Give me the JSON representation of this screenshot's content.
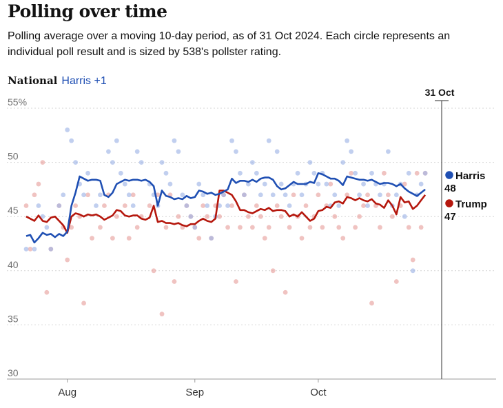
{
  "header": {
    "title": "Polling over time",
    "subtitle": "Polling average over a moving 10-day period, as of 31 Oct 2024. Each circle represents an individual poll result and is sized by 538's pollster rating."
  },
  "panel": {
    "name": "National",
    "lead": "Harris +1"
  },
  "colors": {
    "harris": "#1f4fb3",
    "trump": "#b5170d",
    "harris_dot": "#9fb5e6",
    "trump_dot": "#e8a3a0",
    "grid": "#d6d6d6",
    "axis": "#555555"
  },
  "chart_data": {
    "type": "line",
    "title": "Polling over time",
    "xlabel": "",
    "ylabel": "",
    "ylim": [
      30,
      55
    ],
    "xlim": [
      0,
      97
    ],
    "x_unit": "days since 22 Jul 2024",
    "yticks": [
      {
        "value": 55,
        "label": "55%"
      },
      {
        "value": 50,
        "label": "50"
      },
      {
        "value": 45,
        "label": "45"
      },
      {
        "value": 40,
        "label": "40"
      },
      {
        "value": 35,
        "label": "35"
      },
      {
        "value": 30,
        "label": "30"
      }
    ],
    "xticks": [
      {
        "x": 10,
        "label": "Aug"
      },
      {
        "x": 41,
        "label": "Sep"
      },
      {
        "x": 71,
        "label": "Oct"
      }
    ],
    "marker": {
      "x": 101,
      "label": "31 Oct"
    },
    "series": [
      {
        "name": "Harris",
        "final_value": "48",
        "x": [
          0,
          1,
          2,
          3,
          4,
          5,
          6,
          7,
          8,
          9,
          10,
          11,
          12,
          13,
          14,
          15,
          16,
          17,
          18,
          19,
          20,
          21,
          22,
          23,
          24,
          25,
          26,
          27,
          28,
          29,
          30,
          31,
          32,
          33,
          34,
          35,
          36,
          37,
          38,
          39,
          40,
          41,
          42,
          43,
          44,
          45,
          46,
          47,
          48,
          49,
          50,
          51,
          52,
          53,
          54,
          55,
          56,
          57,
          58,
          59,
          60,
          61,
          62,
          63,
          64,
          65,
          66,
          67,
          68,
          69,
          70,
          71,
          72,
          73,
          74,
          75,
          76,
          77,
          78,
          79,
          80,
          81,
          82,
          83,
          84,
          85,
          86,
          87,
          88,
          89,
          90,
          91,
          92,
          93,
          94,
          95,
          96,
          97
        ],
        "values": [
          43.2,
          43.3,
          42.6,
          43.0,
          43.5,
          43.3,
          43.4,
          43.1,
          43.4,
          43.2,
          43.6,
          46.0,
          47.2,
          48.7,
          48.5,
          48.3,
          48.4,
          48.4,
          48.3,
          47.0,
          46.8,
          47.2,
          48.0,
          48.2,
          48.4,
          48.3,
          48.4,
          48.4,
          48.3,
          48.4,
          48.2,
          47.8,
          46.0,
          47.4,
          46.9,
          46.8,
          46.6,
          46.7,
          46.6,
          46.9,
          46.7,
          46.8,
          47.4,
          47.3,
          47.1,
          47.2,
          47.0,
          47.1,
          47.3,
          47.5,
          48.5,
          48.1,
          48.3,
          48.3,
          48.2,
          48.4,
          48.2,
          48.5,
          48.6,
          48.6,
          48.4,
          47.8,
          47.5,
          47.6,
          47.9,
          48.2,
          48.0,
          48.0,
          48.0,
          48.2,
          48.1,
          49.0,
          48.9,
          48.7,
          48.5,
          48.5,
          48.3,
          47.9,
          48.7,
          48.6,
          48.5,
          48.4,
          48.4,
          48.3,
          48.4,
          48.2,
          48.0,
          48.1,
          48.1,
          48.0,
          47.8,
          48.0,
          47.6,
          47.3,
          47.1,
          46.9,
          47.2,
          47.5
        ]
      },
      {
        "name": "Trump",
        "final_value": "47",
        "x": [
          0,
          1,
          2,
          3,
          4,
          5,
          6,
          7,
          8,
          9,
          10,
          11,
          12,
          13,
          14,
          15,
          16,
          17,
          18,
          19,
          20,
          21,
          22,
          23,
          24,
          25,
          26,
          27,
          28,
          29,
          30,
          31,
          32,
          33,
          34,
          35,
          36,
          37,
          38,
          39,
          40,
          41,
          42,
          43,
          44,
          45,
          46,
          47,
          48,
          49,
          50,
          51,
          52,
          53,
          54,
          55,
          56,
          57,
          58,
          59,
          60,
          61,
          62,
          63,
          64,
          65,
          66,
          67,
          68,
          69,
          70,
          71,
          72,
          73,
          74,
          75,
          76,
          77,
          78,
          79,
          80,
          81,
          82,
          83,
          84,
          85,
          86,
          87,
          88,
          89,
          90,
          91,
          92,
          93,
          94,
          95,
          96,
          97
        ],
        "values": [
          45.0,
          44.8,
          44.6,
          45.1,
          44.6,
          44.5,
          44.9,
          45.0,
          44.6,
          44.2,
          43.5,
          45.0,
          45.3,
          45.2,
          45.0,
          45.2,
          45.1,
          45.2,
          45.0,
          44.7,
          44.9,
          45.1,
          45.6,
          45.5,
          45.1,
          45.0,
          45.1,
          45.1,
          44.8,
          44.7,
          44.9,
          46.0,
          44.5,
          44.6,
          44.4,
          44.4,
          44.3,
          44.4,
          44.2,
          44.1,
          44.3,
          44.3,
          44.6,
          44.8,
          44.6,
          44.5,
          44.8,
          47.4,
          47.4,
          47.2,
          47.0,
          46.4,
          45.6,
          45.6,
          45.4,
          45.3,
          45.5,
          45.7,
          45.6,
          45.8,
          45.5,
          45.6,
          45.6,
          45.5,
          45.0,
          45.2,
          45.0,
          45.4,
          45.0,
          44.6,
          44.8,
          45.5,
          45.6,
          45.9,
          45.8,
          46.3,
          46.4,
          46.2,
          46.8,
          46.7,
          46.5,
          46.7,
          46.5,
          46.4,
          46.6,
          46.2,
          46.1,
          45.8,
          46.5,
          46.0,
          45.2,
          46.8,
          46.3,
          46.4,
          45.7,
          46.0,
          46.5,
          47.0
        ]
      }
    ],
    "polls_harris": [
      [
        0,
        42
      ],
      [
        2,
        42
      ],
      [
        3,
        46
      ],
      [
        4,
        45
      ],
      [
        5,
        44
      ],
      [
        6,
        42
      ],
      [
        8,
        46
      ],
      [
        9,
        47
      ],
      [
        10,
        53
      ],
      [
        11,
        52
      ],
      [
        12,
        50
      ],
      [
        13,
        48
      ],
      [
        14,
        47
      ],
      [
        15,
        49
      ],
      [
        17,
        46
      ],
      [
        18,
        47
      ],
      [
        20,
        51
      ],
      [
        21,
        50
      ],
      [
        22,
        52
      ],
      [
        23,
        49
      ],
      [
        24,
        48
      ],
      [
        25,
        47
      ],
      [
        26,
        46
      ],
      [
        27,
        51
      ],
      [
        28,
        50
      ],
      [
        30,
        48
      ],
      [
        31,
        47
      ],
      [
        32,
        46
      ],
      [
        33,
        50
      ],
      [
        34,
        49
      ],
      [
        35,
        48
      ],
      [
        36,
        52
      ],
      [
        37,
        51
      ],
      [
        38,
        47
      ],
      [
        39,
        46
      ],
      [
        40,
        45
      ],
      [
        41,
        44
      ],
      [
        42,
        48
      ],
      [
        43,
        47
      ],
      [
        44,
        46
      ],
      [
        45,
        43
      ],
      [
        46,
        45
      ],
      [
        47,
        46
      ],
      [
        48,
        47
      ],
      [
        49,
        46
      ],
      [
        50,
        52
      ],
      [
        51,
        51
      ],
      [
        52,
        49
      ],
      [
        53,
        47
      ],
      [
        54,
        48
      ],
      [
        55,
        50
      ],
      [
        56,
        49
      ],
      [
        57,
        47
      ],
      [
        58,
        48
      ],
      [
        59,
        52
      ],
      [
        60,
        47
      ],
      [
        61,
        51
      ],
      [
        62,
        48
      ],
      [
        63,
        47
      ],
      [
        64,
        46
      ],
      [
        65,
        48
      ],
      [
        66,
        49
      ],
      [
        67,
        47
      ],
      [
        68,
        48
      ],
      [
        69,
        50
      ],
      [
        70,
        49
      ],
      [
        71,
        48
      ],
      [
        72,
        49
      ],
      [
        73,
        48
      ],
      [
        74,
        46
      ],
      [
        75,
        47
      ],
      [
        76,
        46
      ],
      [
        77,
        50
      ],
      [
        78,
        52
      ],
      [
        79,
        51
      ],
      [
        80,
        49
      ],
      [
        81,
        47
      ],
      [
        82,
        48
      ],
      [
        83,
        46
      ],
      [
        84,
        49
      ],
      [
        85,
        48
      ],
      [
        86,
        47
      ],
      [
        87,
        48
      ],
      [
        88,
        51
      ],
      [
        89,
        46
      ],
      [
        90,
        47
      ],
      [
        91,
        48
      ],
      [
        92,
        45
      ],
      [
        93,
        49
      ],
      [
        94,
        40
      ],
      [
        95,
        47
      ],
      [
        96,
        48
      ],
      [
        97,
        49
      ]
    ],
    "polls_trump": [
      [
        0,
        46
      ],
      [
        1,
        42
      ],
      [
        2,
        47
      ],
      [
        3,
        48
      ],
      [
        4,
        50
      ],
      [
        5,
        38
      ],
      [
        6,
        42
      ],
      [
        8,
        46
      ],
      [
        9,
        44
      ],
      [
        10,
        41
      ],
      [
        11,
        44
      ],
      [
        12,
        46
      ],
      [
        13,
        45
      ],
      [
        14,
        37
      ],
      [
        15,
        47
      ],
      [
        16,
        43
      ],
      [
        18,
        44
      ],
      [
        19,
        46
      ],
      [
        20,
        47
      ],
      [
        21,
        43
      ],
      [
        22,
        45
      ],
      [
        24,
        46
      ],
      [
        25,
        43
      ],
      [
        26,
        47
      ],
      [
        27,
        44
      ],
      [
        28,
        45
      ],
      [
        30,
        46
      ],
      [
        31,
        40
      ],
      [
        32,
        47
      ],
      [
        33,
        36
      ],
      [
        34,
        44
      ],
      [
        35,
        47
      ],
      [
        36,
        39
      ],
      [
        37,
        45
      ],
      [
        38,
        44
      ],
      [
        39,
        46
      ],
      [
        40,
        45
      ],
      [
        41,
        44
      ],
      [
        42,
        43
      ],
      [
        43,
        46
      ],
      [
        44,
        45
      ],
      [
        45,
        43
      ],
      [
        46,
        46
      ],
      [
        47,
        45
      ],
      [
        48,
        47
      ],
      [
        49,
        44
      ],
      [
        50,
        46
      ],
      [
        51,
        39
      ],
      [
        52,
        44
      ],
      [
        53,
        47
      ],
      [
        54,
        45
      ],
      [
        55,
        44
      ],
      [
        56,
        46
      ],
      [
        57,
        45
      ],
      [
        58,
        43
      ],
      [
        59,
        44
      ],
      [
        60,
        40
      ],
      [
        61,
        46
      ],
      [
        62,
        45
      ],
      [
        63,
        38
      ],
      [
        64,
        44
      ],
      [
        65,
        47
      ],
      [
        66,
        45
      ],
      [
        67,
        43
      ],
      [
        68,
        46
      ],
      [
        69,
        44
      ],
      [
        70,
        45
      ],
      [
        71,
        47
      ],
      [
        72,
        44
      ],
      [
        73,
        46
      ],
      [
        74,
        48
      ],
      [
        75,
        45
      ],
      [
        76,
        44
      ],
      [
        77,
        43
      ],
      [
        78,
        47
      ],
      [
        79,
        49
      ],
      [
        80,
        44
      ],
      [
        81,
        45
      ],
      [
        82,
        46
      ],
      [
        83,
        47
      ],
      [
        84,
        37
      ],
      [
        85,
        46
      ],
      [
        86,
        44
      ],
      [
        87,
        49
      ],
      [
        88,
        47
      ],
      [
        89,
        45
      ],
      [
        90,
        39
      ],
      [
        91,
        46
      ],
      [
        92,
        48
      ],
      [
        93,
        44
      ],
      [
        94,
        41
      ],
      [
        95,
        49
      ],
      [
        96,
        44
      ],
      [
        97,
        49
      ]
    ]
  }
}
